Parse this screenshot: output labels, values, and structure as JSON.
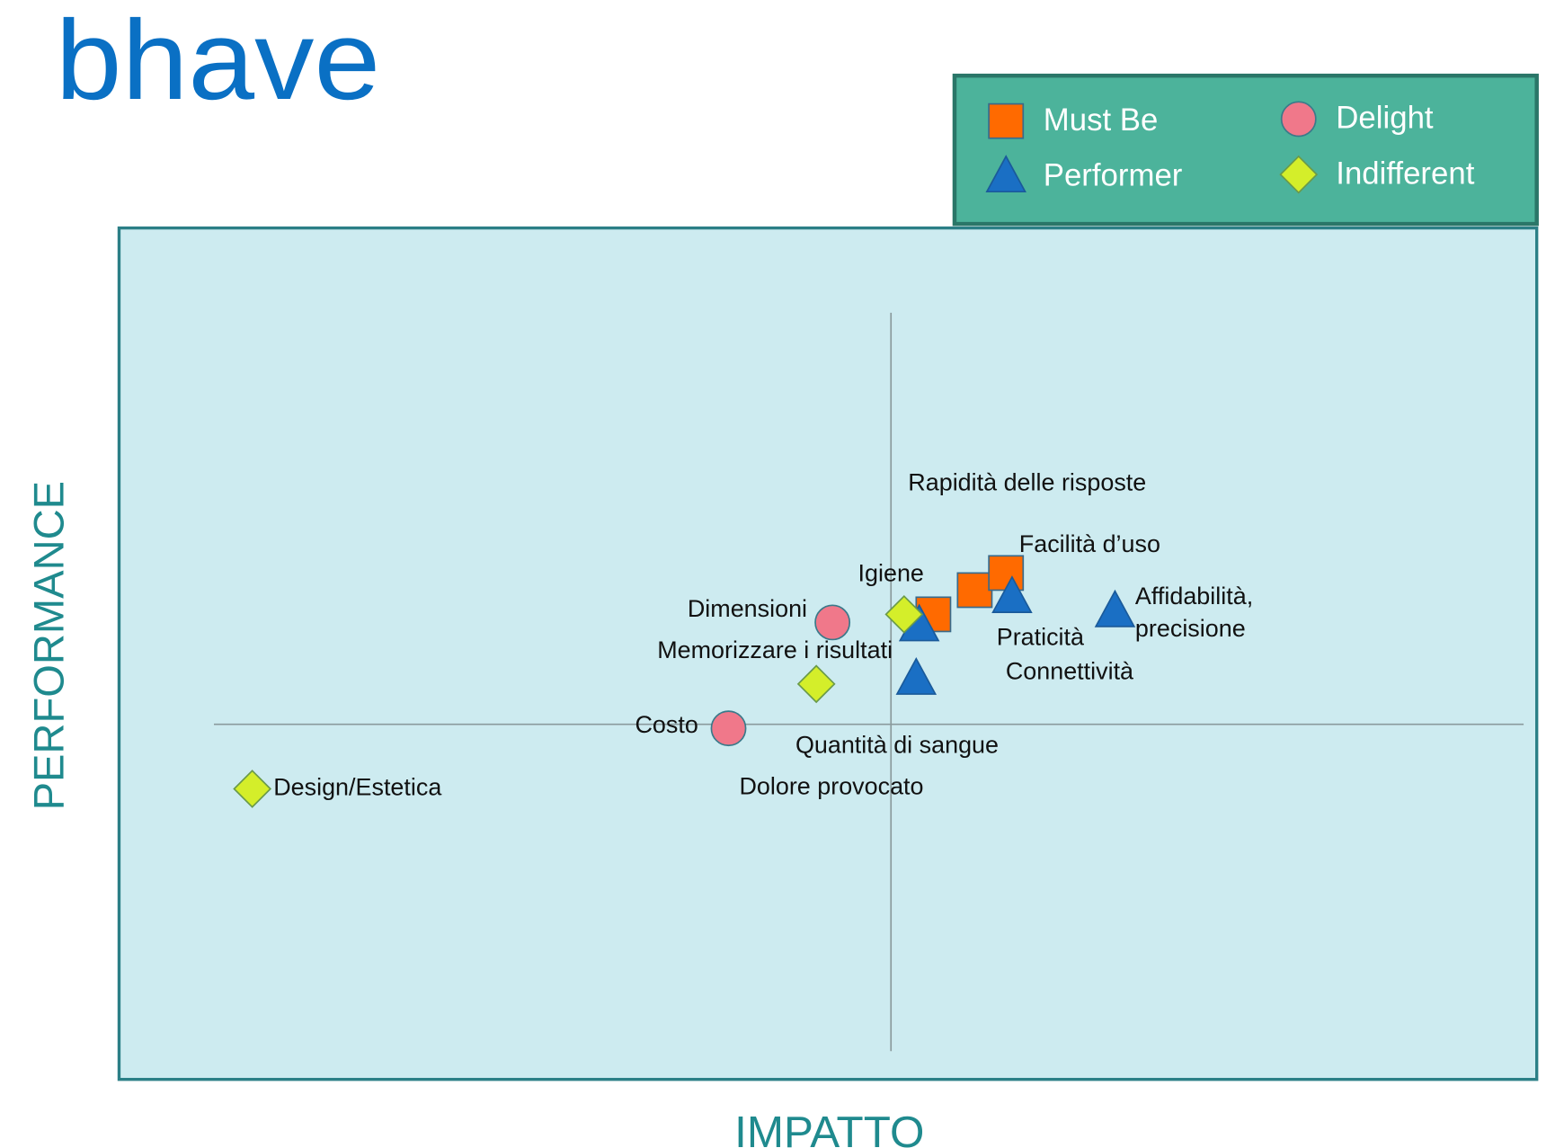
{
  "logo": "bhave",
  "chart_data": {
    "type": "scatter",
    "xlabel": "IMPATTO",
    "ylabel": "PERFORMANCE",
    "xlim": [
      -7.65,
      6.4
    ],
    "ylim": [
      -3.52,
      4.92
    ],
    "quadrant_center": [
      0,
      0
    ],
    "plot_color": "#cdebf0",
    "legend_color": "#4cb39b",
    "series": [
      {
        "name": "Must Be",
        "color": "#ff6a00",
        "marker": "square",
        "x": [
          0.42,
          0.83,
          1.14
        ],
        "values": [
          1.09,
          1.33,
          1.5
        ],
        "labels": [
          "Igiene",
          "Rapidità delle risposte",
          "Facilità d’uso"
        ]
      },
      {
        "name": "Performer",
        "color": "#1a6fc4",
        "marker": "triangle",
        "x": [
          0.28,
          1.2,
          2.22,
          0.25
        ],
        "values": [
          0.98,
          1.26,
          1.12,
          0.45
        ],
        "labels": [
          "Connettività",
          "Praticità",
          "Affidabilità, precisione",
          "Quantità di sangue"
        ]
      },
      {
        "name": "Delight",
        "color": "#f0788a",
        "marker": "circle",
        "x": [
          -0.58,
          -1.61
        ],
        "values": [
          1.01,
          -0.04
        ],
        "labels": [
          "Dimensioni",
          "Costo"
        ]
      },
      {
        "name": "Indifferent",
        "color": "#d4ee2a",
        "marker": "diamond",
        "x": [
          0.13,
          -0.74,
          -6.33
        ],
        "values": [
          1.09,
          0.4,
          -0.64
        ],
        "labels": [
          "Memorizzare i risultati",
          "Dolore provocato",
          "Design/Estetica"
        ]
      }
    ]
  }
}
